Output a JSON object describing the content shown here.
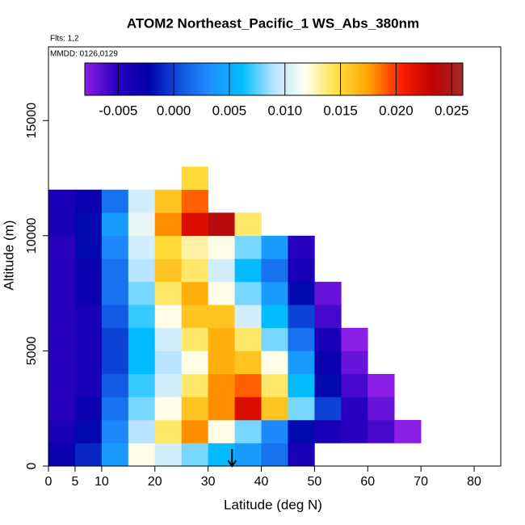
{
  "chart_data": {
    "type": "heatmap",
    "title": "ATOM2 Northeast_Pacific_1 WS_Abs_380nm",
    "subtitle": "Flts: 1,2",
    "annotation": "MMDD: 0126,0129",
    "x_label": "Latitude (deg N)",
    "y_label": "Altitude (m)",
    "xlim": [
      0,
      85
    ],
    "ylim": [
      0,
      18200
    ],
    "xticks": [
      0,
      5,
      10,
      20,
      30,
      40,
      50,
      60,
      70,
      80
    ],
    "yticks": [
      0,
      5000,
      10000,
      15000
    ],
    "x_edges": [
      0,
      5,
      10,
      15,
      20,
      25,
      30,
      35,
      40,
      45,
      50,
      55,
      60,
      65,
      70
    ],
    "y_edges": [
      0,
      1000,
      2000,
      3000,
      4000,
      5000,
      6000,
      7000,
      8000,
      9000,
      10000,
      11000,
      12000,
      13000
    ],
    "z": [
      [
        -0.003,
        -0.001,
        0.004,
        0.012,
        0.01,
        0.008,
        0.006,
        0.004,
        0.002,
        -0.004,
        null,
        null,
        null,
        null
      ],
      [
        -0.004,
        -0.002,
        0.003,
        0.009,
        0.014,
        0.018,
        0.012,
        0.008,
        0.003,
        -0.002,
        -0.004,
        -0.005,
        -0.006,
        -0.008
      ],
      [
        -0.005,
        -0.003,
        0.002,
        0.008,
        0.012,
        0.016,
        0.018,
        0.022,
        0.016,
        0.008,
        0.0,
        -0.005,
        -0.007,
        null
      ],
      [
        -0.005,
        -0.004,
        0.001,
        0.007,
        0.01,
        0.014,
        0.018,
        0.019,
        0.014,
        0.006,
        -0.002,
        -0.006,
        -0.008,
        null
      ],
      [
        -0.005,
        -0.004,
        0.0,
        0.006,
        0.009,
        0.012,
        0.017,
        0.016,
        0.012,
        0.004,
        -0.003,
        -0.007,
        null,
        null
      ],
      [
        -0.005,
        -0.004,
        0.0,
        0.006,
        0.01,
        0.014,
        0.017,
        0.014,
        0.008,
        0.002,
        -0.004,
        -0.008,
        null,
        null
      ],
      [
        -0.005,
        -0.004,
        0.001,
        0.007,
        0.012,
        0.016,
        0.016,
        0.01,
        0.006,
        0.0,
        -0.006,
        null,
        null,
        null
      ],
      [
        -0.005,
        -0.003,
        0.002,
        0.008,
        0.014,
        0.017,
        0.012,
        0.008,
        0.004,
        -0.002,
        -0.007,
        null,
        null,
        null
      ],
      [
        -0.005,
        -0.003,
        0.002,
        0.009,
        0.016,
        0.014,
        0.01,
        0.006,
        0.002,
        -0.004,
        null,
        null,
        null,
        null
      ],
      [
        -0.005,
        -0.002,
        0.003,
        0.01,
        0.015,
        0.013,
        0.012,
        0.008,
        0.004,
        -0.005,
        null,
        null,
        null,
        null
      ],
      [
        -0.004,
        -0.002,
        0.004,
        0.011,
        0.018,
        0.022,
        0.024,
        0.014,
        null,
        null,
        null,
        null,
        null,
        null
      ],
      [
        -0.004,
        -0.003,
        0.002,
        0.01,
        0.016,
        0.019,
        null,
        null,
        null,
        null,
        null,
        null,
        null,
        null
      ],
      [
        null,
        null,
        null,
        null,
        null,
        0.015,
        null,
        null,
        null,
        null,
        null,
        null,
        null,
        null
      ]
    ],
    "clim": [
      -0.008,
      0.026
    ],
    "cticks": [
      -0.005,
      {
        "value": 0,
        "label": "0.000"
      },
      0.005,
      {
        "value": 0.01,
        "label": "0.010"
      },
      0.015,
      {
        "value": 0.02,
        "label": "0.020"
      },
      0.025
    ],
    "colormap": [
      "#8a1ee6",
      "#2a00c0",
      "#0000a8",
      "#1050e0",
      "#1e90ff",
      "#00bfff",
      "#b8e4ff",
      "#fffff0",
      "#ffe040",
      "#ffa500",
      "#ff2000",
      "#c00000",
      "#a52a2a"
    ],
    "arrow_latitude": 34.5
  }
}
